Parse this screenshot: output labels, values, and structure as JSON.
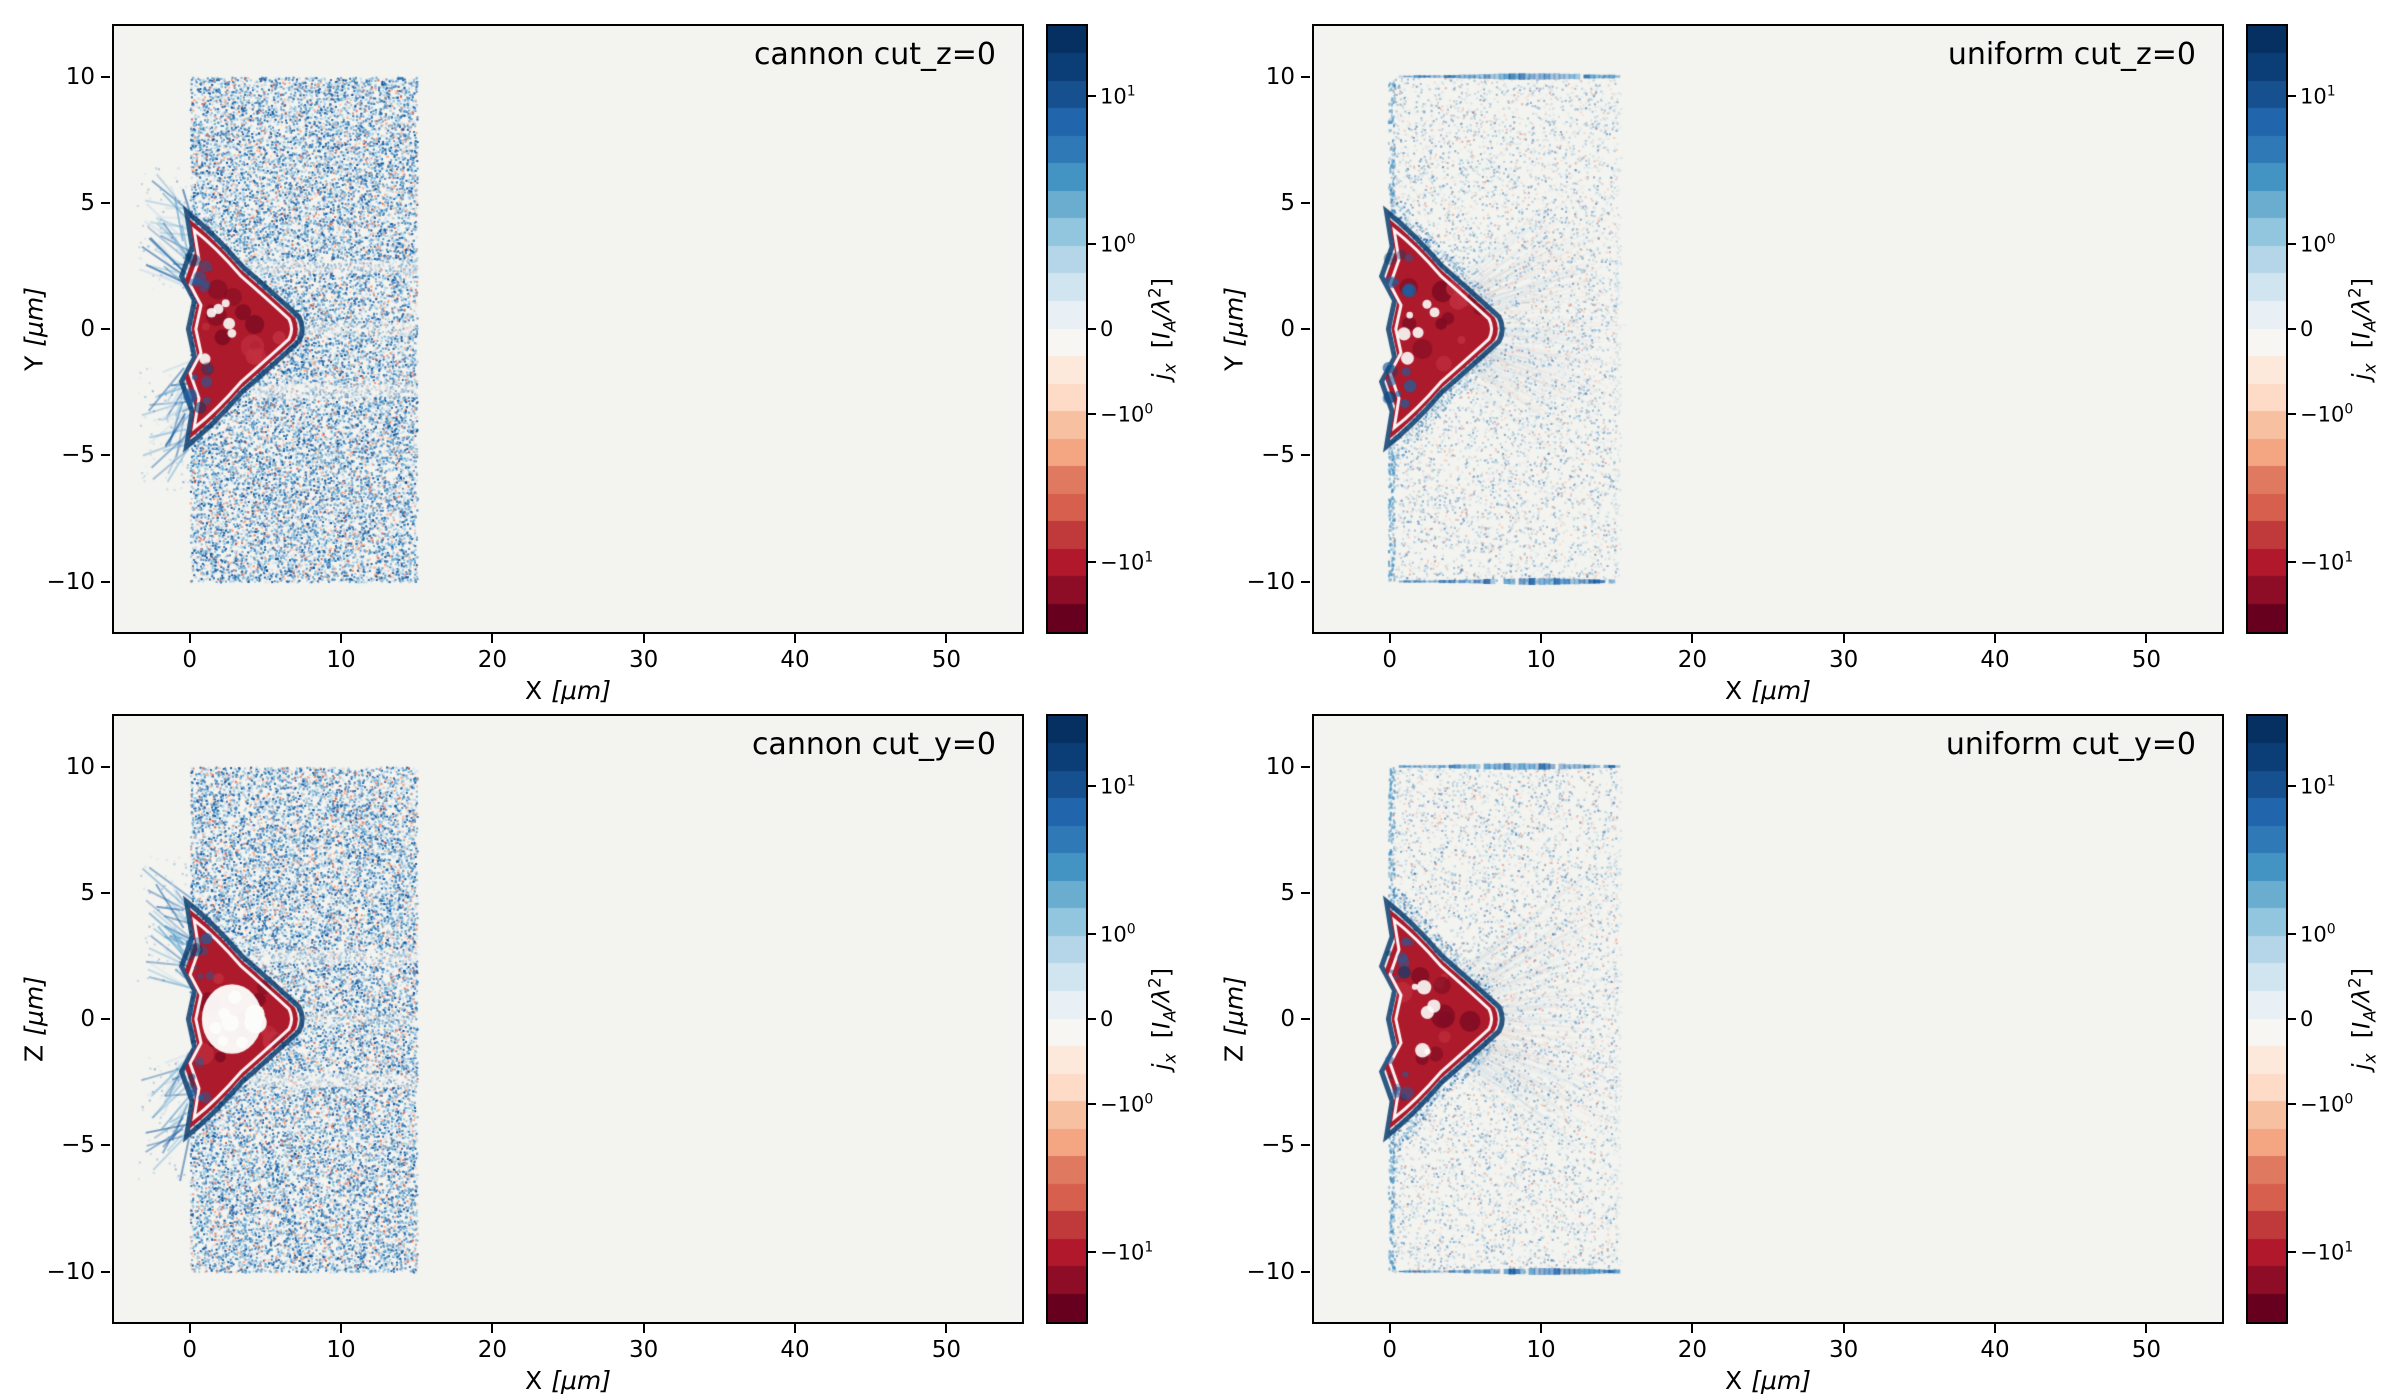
{
  "chart_data": {
    "type": "heatmap",
    "layout": "2x2",
    "quantity": "longitudinal current density j_x",
    "colormap": "RdBu",
    "color_scale": "symlog",
    "colorbar": {
      "label_parts": {
        "j": "j",
        "x": "x",
        "open": "  [",
        "I": "I",
        "A": "A",
        "lam": "/λ",
        "two": "2",
        "close": "]"
      },
      "label_plain": "jx  [IA/λ2]",
      "ticks": [
        {
          "base": "10",
          "exp": "1",
          "frac": 0.115
        },
        {
          "base": "10",
          "exp": "0",
          "frac": 0.36
        },
        {
          "base": "0",
          "exp": "",
          "frac": 0.5
        },
        {
          "base": "−10",
          "exp": "0",
          "frac": 0.64
        },
        {
          "base": "−10",
          "exp": "1",
          "frac": 0.885
        }
      ]
    },
    "colors": {
      "plot_bg": "#f3f3ef",
      "jet_fill": "#ad1a2b",
      "jet_dark": "#7f0c23",
      "jet_bright": "#c2303f",
      "contour_white": "#fcfcfa",
      "contour_navy": "#0b3d6e",
      "plume_blue": "#1f5f9e",
      "blues": [
        "#08519c",
        "#2166ac",
        "#4292c6",
        "#6baed6",
        "#9ecae1",
        "#c6dbef"
      ],
      "oranges": [
        "#fcbba1",
        "#fc9272",
        "#f4a582",
        "#d6604d",
        "#fddbc7"
      ],
      "band_colors": [
        "#053061",
        "#0b3d77",
        "#17508f",
        "#2166ac",
        "#3079b7",
        "#4393c3",
        "#6badcf",
        "#92c5de",
        "#b4d6e8",
        "#d1e5f0",
        "#e9f0f5",
        "#f7f6f3",
        "#fce9dc",
        "#fddbc7",
        "#f7c0a1",
        "#f4a582",
        "#df7960",
        "#d6604d",
        "#c03a3c",
        "#b2182b",
        "#8c0d25",
        "#67001f"
      ]
    },
    "panels": [
      {
        "title": "cannon cut_z=0",
        "style": "cannon",
        "xlabel_name": "X",
        "xlabel_unit": "[μm]",
        "ylabel_name": "Y",
        "ylabel_unit": "[μm]",
        "xlim": [
          -5,
          55
        ],
        "ylim": [
          -12,
          12
        ],
        "xticks": [
          0,
          10,
          20,
          30,
          40,
          50
        ],
        "yticks": [
          10,
          5,
          0,
          -5,
          -10
        ],
        "white_core": 0.3,
        "features": {
          "noise_block": {
            "x": [
              0,
              15
            ],
            "y": [
              -10,
              10
            ]
          },
          "jet": {
            "x": [
              -0.5,
              7.3
            ],
            "y": [
              -4.4,
              4.4
            ]
          }
        }
      },
      {
        "title": "uniform cut_z=0",
        "style": "uniform",
        "xlabel_name": "X",
        "xlabel_unit": "[μm]",
        "ylabel_name": "Y",
        "ylabel_unit": "[μm]",
        "xlim": [
          -5,
          55
        ],
        "ylim": [
          -12,
          12
        ],
        "xticks": [
          0,
          10,
          20,
          30,
          40,
          50
        ],
        "yticks": [
          10,
          5,
          0,
          -5,
          -10
        ],
        "white_core": 0.25,
        "features": {
          "noise_block": {
            "x": [
              0,
              15
            ],
            "y": [
              -10,
              10
            ]
          },
          "jet": {
            "x": [
              -0.5,
              7.3
            ],
            "y": [
              -4.4,
              4.4
            ]
          },
          "edge_lines_y": [
            10,
            -10
          ]
        }
      },
      {
        "title": "cannon cut_y=0",
        "style": "cannon",
        "xlabel_name": "X",
        "xlabel_unit": "[μm]",
        "ylabel_name": "Z",
        "ylabel_unit": "[μm]",
        "xlim": [
          -5,
          55
        ],
        "ylim": [
          -12,
          12
        ],
        "xticks": [
          0,
          10,
          20,
          30,
          40,
          50
        ],
        "yticks": [
          10,
          5,
          0,
          -5,
          -10
        ],
        "white_core": 0.95,
        "features": {
          "noise_block": {
            "x": [
              0,
              15
            ],
            "y": [
              -10,
              10
            ]
          },
          "jet": {
            "x": [
              -0.5,
              7.3
            ],
            "y": [
              -4.4,
              4.4
            ]
          }
        }
      },
      {
        "title": "uniform cut_y=0",
        "style": "uniform",
        "xlabel_name": "X",
        "xlabel_unit": "[μm]",
        "ylabel_name": "Z",
        "ylabel_unit": "[μm]",
        "xlim": [
          -5,
          55
        ],
        "ylim": [
          -12,
          12
        ],
        "xticks": [
          0,
          10,
          20,
          30,
          40,
          50
        ],
        "yticks": [
          10,
          5,
          0,
          -5,
          -10
        ],
        "white_core": 0.35,
        "features": {
          "noise_block": {
            "x": [
              0,
              15
            ],
            "y": [
              -10,
              10
            ]
          },
          "jet": {
            "x": [
              -0.5,
              7.3
            ],
            "y": [
              -4.4,
              4.4
            ]
          },
          "edge_lines_y": [
            10,
            -10
          ]
        }
      }
    ]
  }
}
